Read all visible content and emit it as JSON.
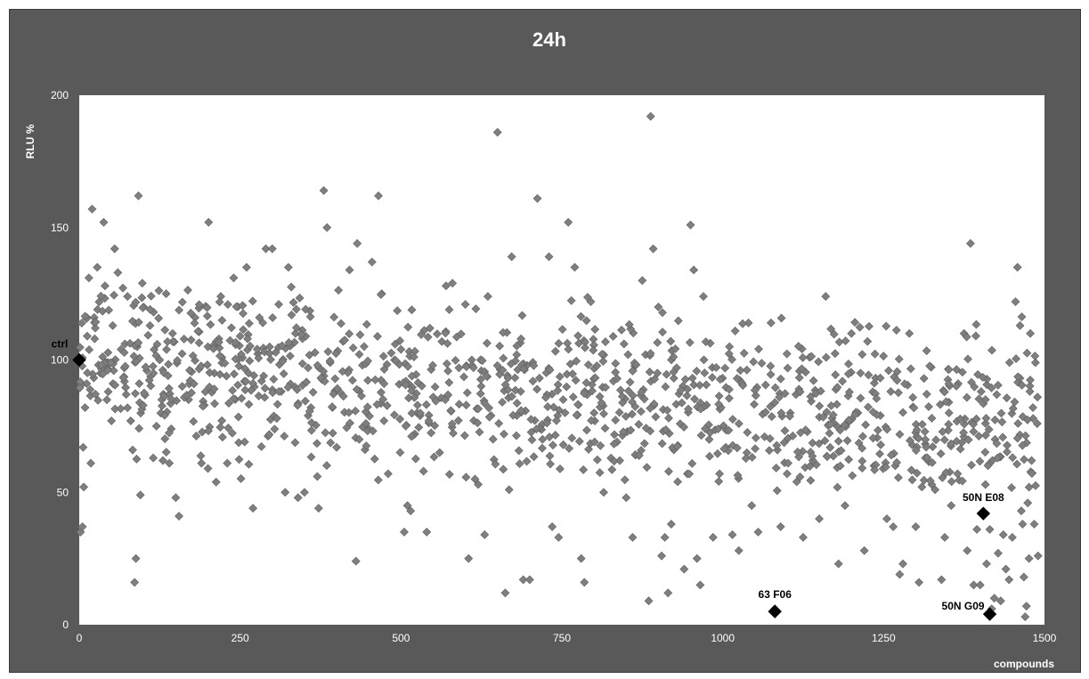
{
  "chart_data": {
    "type": "scatter",
    "title": "24h",
    "xlabel": "compounds",
    "ylabel": "RLU %",
    "xlim": [
      0,
      1500
    ],
    "ylim": [
      0,
      200
    ],
    "x_ticks": [
      0,
      250,
      500,
      750,
      1000,
      1250,
      1500
    ],
    "y_ticks": [
      0,
      50,
      100,
      150,
      200
    ],
    "grid": false,
    "legend": "none",
    "colors": {
      "frame": "#595959",
      "plot_area": "#ffffff",
      "marker": "#7f7f7f",
      "highlight_marker": "#000000"
    },
    "series": [
      {
        "marker": "diamond",
        "note": "approx. 1480 screening compounds; representative readings",
        "points": [
          [
            2,
            35
          ],
          [
            5,
            37
          ],
          [
            6,
            67
          ],
          [
            7,
            52
          ],
          [
            9,
            82
          ],
          [
            12,
            116
          ],
          [
            15,
            131
          ],
          [
            18,
            61
          ],
          [
            20,
            157
          ],
          [
            24,
            108
          ],
          [
            28,
            135
          ],
          [
            33,
            95
          ],
          [
            38,
            152
          ],
          [
            40,
            128
          ],
          [
            45,
            88
          ],
          [
            50,
            77
          ],
          [
            52,
            113
          ],
          [
            55,
            142
          ],
          [
            60,
            133
          ],
          [
            65,
            104
          ],
          [
            70,
            97
          ],
          [
            75,
            124
          ],
          [
            80,
            77
          ],
          [
            83,
            66
          ],
          [
            86,
            16
          ],
          [
            88,
            25
          ],
          [
            90,
            105
          ],
          [
            92,
            162
          ],
          [
            95,
            49
          ],
          [
            98,
            129
          ],
          [
            100,
            120
          ],
          [
            105,
            96
          ],
          [
            110,
            113
          ],
          [
            115,
            63
          ],
          [
            120,
            75
          ],
          [
            125,
            100
          ],
          [
            130,
            62
          ],
          [
            135,
            125
          ],
          [
            140,
            61
          ],
          [
            145,
            110
          ],
          [
            150,
            48
          ],
          [
            155,
            41
          ],
          [
            160,
            90
          ],
          [
            170,
            85
          ],
          [
            180,
            116
          ],
          [
            190,
            61
          ],
          [
            200,
            59
          ],
          [
            201,
            152
          ],
          [
            210,
            95
          ],
          [
            220,
            124
          ],
          [
            230,
            61
          ],
          [
            240,
            131
          ],
          [
            250,
            109
          ],
          [
            260,
            135
          ],
          [
            270,
            44
          ],
          [
            280,
            116
          ],
          [
            290,
            142
          ],
          [
            300,
            142
          ],
          [
            310,
            121
          ],
          [
            320,
            50
          ],
          [
            325,
            135
          ],
          [
            330,
            117
          ],
          [
            340,
            48
          ],
          [
            350,
            50
          ],
          [
            360,
            82
          ],
          [
            370,
            56
          ],
          [
            372,
            44
          ],
          [
            380,
            164
          ],
          [
            385,
            150
          ],
          [
            390,
            99
          ],
          [
            400,
            67
          ],
          [
            410,
            107
          ],
          [
            420,
            134
          ],
          [
            430,
            24
          ],
          [
            432,
            144
          ],
          [
            440,
            98
          ],
          [
            450,
            74
          ],
          [
            455,
            137
          ],
          [
            465,
            162
          ],
          [
            470,
            125
          ],
          [
            480,
            57
          ],
          [
            490,
            100
          ],
          [
            500,
            104
          ],
          [
            505,
            35
          ],
          [
            510,
            45
          ],
          [
            515,
            43
          ],
          [
            525,
            80
          ],
          [
            535,
            58
          ],
          [
            540,
            35
          ],
          [
            545,
            112
          ],
          [
            550,
            86
          ],
          [
            560,
            65
          ],
          [
            570,
            128
          ],
          [
            575,
            119
          ],
          [
            580,
            129
          ],
          [
            590,
            97
          ],
          [
            600,
            121
          ],
          [
            605,
            25
          ],
          [
            610,
            100
          ],
          [
            615,
            55
          ],
          [
            620,
            53
          ],
          [
            630,
            34
          ],
          [
            635,
            124
          ],
          [
            640,
            79
          ],
          [
            650,
            186
          ],
          [
            660,
            72
          ],
          [
            662,
            12
          ],
          [
            668,
            51
          ],
          [
            672,
            139
          ],
          [
            680,
            79
          ],
          [
            690,
            17
          ],
          [
            700,
            17
          ],
          [
            705,
            92
          ],
          [
            712,
            161
          ],
          [
            720,
            70
          ],
          [
            730,
            139
          ],
          [
            735,
            37
          ],
          [
            745,
            33
          ],
          [
            752,
            85
          ],
          [
            760,
            152
          ],
          [
            770,
            135
          ],
          [
            780,
            25
          ],
          [
            785,
            16
          ],
          [
            795,
            122
          ],
          [
            800,
            80
          ],
          [
            815,
            50
          ],
          [
            830,
            92
          ],
          [
            840,
            62
          ],
          [
            850,
            48
          ],
          [
            860,
            33
          ],
          [
            870,
            64
          ],
          [
            875,
            130
          ],
          [
            880,
            102
          ],
          [
            885,
            9
          ],
          [
            888,
            192
          ],
          [
            892,
            142
          ],
          [
            900,
            120
          ],
          [
            905,
            26
          ],
          [
            910,
            33
          ],
          [
            915,
            12
          ],
          [
            920,
            38
          ],
          [
            930,
            54
          ],
          [
            940,
            21
          ],
          [
            945,
            57
          ],
          [
            950,
            151
          ],
          [
            955,
            134
          ],
          [
            960,
            25
          ],
          [
            965,
            15
          ],
          [
            970,
            124
          ],
          [
            975,
            83
          ],
          [
            985,
            33
          ],
          [
            995,
            57
          ],
          [
            1005,
            67
          ],
          [
            1015,
            34
          ],
          [
            1025,
            28
          ],
          [
            1030,
            91
          ],
          [
            1040,
            114
          ],
          [
            1045,
            45
          ],
          [
            1055,
            35
          ],
          [
            1065,
            71
          ],
          [
            1075,
            114
          ],
          [
            1081,
            6
          ],
          [
            1085,
            66
          ],
          [
            1090,
            37
          ],
          [
            1100,
            57
          ],
          [
            1105,
            80
          ],
          [
            1115,
            54
          ],
          [
            1125,
            33
          ],
          [
            1135,
            101
          ],
          [
            1140,
            62
          ],
          [
            1150,
            40
          ],
          [
            1160,
            124
          ],
          [
            1170,
            78
          ],
          [
            1180,
            23
          ],
          [
            1190,
            45
          ],
          [
            1200,
            110
          ],
          [
            1210,
            80
          ],
          [
            1220,
            28
          ],
          [
            1225,
            107
          ],
          [
            1235,
            60
          ],
          [
            1245,
            79
          ],
          [
            1255,
            40
          ],
          [
            1265,
            37
          ],
          [
            1275,
            19
          ],
          [
            1280,
            23
          ],
          [
            1290,
            110
          ],
          [
            1300,
            37
          ],
          [
            1305,
            16
          ],
          [
            1315,
            63
          ],
          [
            1325,
            78
          ],
          [
            1330,
            51
          ],
          [
            1340,
            17
          ],
          [
            1345,
            33
          ],
          [
            1355,
            45
          ],
          [
            1365,
            57
          ],
          [
            1375,
            110
          ],
          [
            1380,
            28
          ],
          [
            1385,
            144
          ],
          [
            1390,
            15
          ],
          [
            1395,
            36
          ],
          [
            1400,
            15
          ],
          [
            1405,
            42
          ],
          [
            1410,
            23
          ],
          [
            1415,
            36
          ],
          [
            1418,
            6
          ],
          [
            1422,
            10
          ],
          [
            1428,
            27
          ],
          [
            1432,
            9
          ],
          [
            1436,
            34
          ],
          [
            1440,
            21
          ],
          [
            1445,
            17
          ],
          [
            1450,
            33
          ],
          [
            1455,
            122
          ],
          [
            1458,
            135
          ],
          [
            1462,
            113
          ],
          [
            1464,
            43
          ],
          [
            1466,
            38
          ],
          [
            1468,
            18
          ],
          [
            1470,
            3
          ],
          [
            1472,
            7
          ],
          [
            1474,
            46
          ],
          [
            1476,
            25
          ],
          [
            1478,
            110
          ],
          [
            1480,
            62
          ],
          [
            1482,
            82
          ],
          [
            1484,
            38
          ],
          [
            1486,
            99
          ],
          [
            1490,
            26
          ]
        ]
      }
    ],
    "annotations": [
      {
        "label": "ctrl",
        "x": 0,
        "y": 100
      },
      {
        "label": "63 F06",
        "x": 1081,
        "y": 5
      },
      {
        "label": "50N E08",
        "x": 1405,
        "y": 42
      },
      {
        "label": "50N G09",
        "x": 1415,
        "y": 4
      }
    ]
  }
}
